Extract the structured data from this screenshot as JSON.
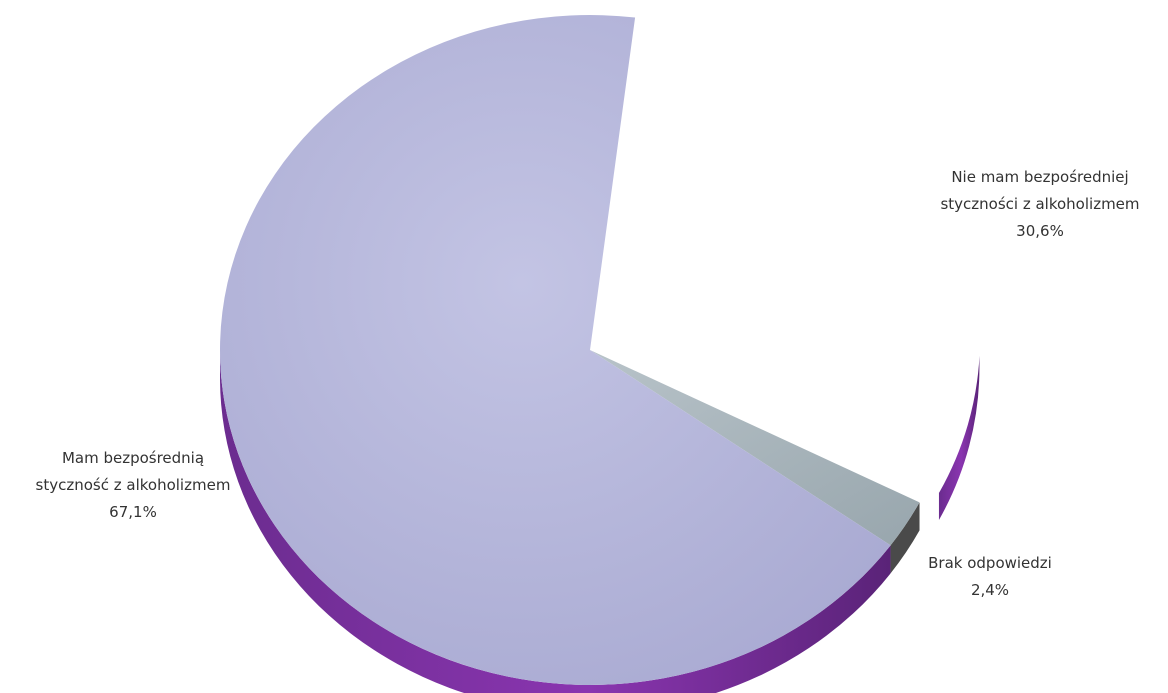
{
  "chart_data": {
    "type": "pie",
    "variant": "3d-exploded",
    "title": "",
    "slices": [
      {
        "name_lines": [
          "Nie mam bezpośredniej",
          "styczności z alkoholizmem"
        ],
        "value": 30.6,
        "value_label": "30,6%",
        "color": "#ffffff",
        "side_color": "#5b2a86",
        "exploded": true
      },
      {
        "name_lines": [
          "Brak odpowiedzi"
        ],
        "value": 2.4,
        "value_label": "2,4%",
        "color": "#a9b7bf",
        "side_color": "#4a4a4a",
        "exploded": false
      },
      {
        "name_lines": [
          "Mam bezpośrednią",
          "styczność z alkoholizmem"
        ],
        "value": 67.1,
        "value_label": "67,1%",
        "color": "#b8b9dc",
        "side_color": "#7a2a9e",
        "exploded": false
      }
    ]
  }
}
